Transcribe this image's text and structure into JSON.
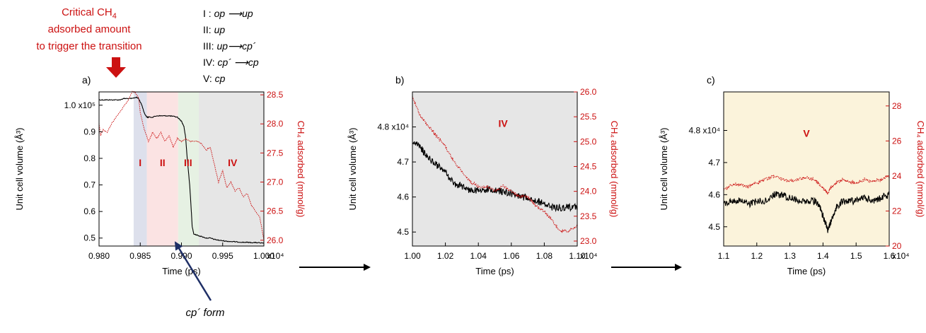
{
  "annotations": {
    "critical_line1": "Critical CH",
    "critical_sub": "4",
    "critical_line2": "adsorbed amount",
    "critical_line3": "to trigger the transition",
    "cp_form": "cp´ form",
    "legend": [
      {
        "label": "I : ",
        "text": "op ⟶up"
      },
      {
        "label": "II: ",
        "text": "up"
      },
      {
        "label": "III: ",
        "text": "up⟶cp´"
      },
      {
        "label": "IV: ",
        "text": "cp´ ⟶cp"
      },
      {
        "label": "V: ",
        "text": "cp"
      }
    ],
    "colors": {
      "volume": "#000000",
      "ch4": "#cc1111",
      "arrow_red": "#cc1111",
      "arrow_navy": "#1f2f66"
    }
  },
  "chart_data": [
    {
      "type": "line",
      "panel_label": "a)",
      "xlabel": "Time (ps)",
      "ylabel": "Unit cell volume (Å³)",
      "y2label": "CH₄ adsorbed (mmol/g)",
      "xlim": [
        0.98,
        1.0
      ],
      "x_multiplier": "x10⁴",
      "ylim": [
        0.47,
        1.05
      ],
      "y_multiplier": "x10⁵",
      "y2lim": [
        25.9,
        28.55
      ],
      "x_ticks": [
        "0.980",
        "0.985",
        "0.990",
        "0.995",
        "1.000"
      ],
      "y_ticks": [
        "1.0",
        "0.9",
        "0.8",
        "0.7",
        "0.6",
        "0.5"
      ],
      "y2_ticks": [
        "28.5",
        "28.0",
        "27.5",
        "27.0",
        "26.5",
        "26.0"
      ],
      "regions": [
        {
          "label": "I",
          "x0": 0.9842,
          "x1": 0.9858,
          "color": "#dde0ec"
        },
        {
          "label": "II",
          "x0": 0.9858,
          "x1": 0.9896,
          "color": "#fbe3e3"
        },
        {
          "label": "III",
          "x0": 0.9896,
          "x1": 0.9921,
          "color": "#e6f1e3"
        },
        {
          "label": "IV",
          "x0": 0.9921,
          "x1": 1.0,
          "color": "#e6e6e6"
        }
      ],
      "series": [
        {
          "axis": "left",
          "style": "solid",
          "x": [
            0.98,
            0.9805,
            0.981,
            0.9815,
            0.982,
            0.9825,
            0.983,
            0.9835,
            0.984,
            0.9845,
            0.9848,
            0.9852,
            0.9855,
            0.9858,
            0.986,
            0.9865,
            0.987,
            0.9875,
            0.988,
            0.9885,
            0.989,
            0.9895,
            0.99,
            0.9903,
            0.9905,
            0.9907,
            0.991,
            0.9912,
            0.9913,
            0.9915,
            0.992,
            0.9925,
            0.993,
            0.9935,
            0.994,
            0.9945,
            0.995,
            0.9955,
            0.996,
            0.9965,
            0.997,
            0.9975,
            0.998,
            0.9985,
            0.999,
            0.9995,
            1.0
          ],
          "values": [
            1.02,
            1.02,
            1.02,
            1.02,
            1.02,
            1.02,
            1.025,
            1.025,
            1.025,
            1.03,
            1.025,
            1.0,
            0.97,
            0.955,
            0.955,
            0.955,
            0.96,
            0.96,
            0.96,
            0.96,
            0.958,
            0.955,
            0.94,
            0.92,
            0.88,
            0.8,
            0.7,
            0.6,
            0.545,
            0.515,
            0.51,
            0.505,
            0.5,
            0.5,
            0.495,
            0.492,
            0.49,
            0.488,
            0.487,
            0.486,
            0.485,
            0.484,
            0.484,
            0.483,
            0.483,
            0.482,
            0.48
          ]
        },
        {
          "axis": "right",
          "style": "dotted",
          "x": [
            0.98,
            0.9802,
            0.9805,
            0.981,
            0.9815,
            0.982,
            0.9825,
            0.983,
            0.9835,
            0.984,
            0.9843,
            0.9848,
            0.985,
            0.9855,
            0.986,
            0.9865,
            0.987,
            0.9875,
            0.988,
            0.9885,
            0.989,
            0.9895,
            0.99,
            0.9905,
            0.991,
            0.9915,
            0.992,
            0.9925,
            0.993,
            0.9935,
            0.994,
            0.9945,
            0.995,
            0.9955,
            0.996,
            0.9965,
            0.997,
            0.9975,
            0.998,
            0.9985,
            0.999,
            0.9995,
            1.0
          ],
          "values": [
            28.0,
            27.8,
            27.9,
            27.85,
            28.0,
            28.1,
            28.2,
            28.3,
            28.4,
            28.55,
            28.55,
            28.45,
            28.2,
            27.9,
            27.7,
            27.85,
            27.75,
            27.85,
            27.7,
            27.8,
            27.6,
            27.75,
            27.7,
            27.75,
            27.7,
            27.7,
            27.7,
            27.65,
            27.55,
            27.6,
            27.3,
            27.0,
            27.2,
            26.9,
            27.0,
            26.85,
            26.9,
            26.75,
            26.8,
            26.6,
            26.5,
            26.4,
            26.0
          ]
        }
      ],
      "phase_labels": [
        {
          "text": "I",
          "x": 0.985,
          "y": 0.77
        },
        {
          "text": "II",
          "x": 0.9877,
          "y": 0.77
        },
        {
          "text": "III",
          "x": 0.9908,
          "y": 0.77
        },
        {
          "text": "IV",
          "x": 0.9962,
          "y": 0.77
        }
      ]
    },
    {
      "type": "line",
      "panel_label": "b)",
      "xlabel": "Time (ps)",
      "ylabel": "Unit cell volume (Å³)",
      "y2label": "CH₄ adsorbed (mmol/g)",
      "xlim": [
        1.0,
        1.1
      ],
      "x_multiplier": "x10⁴",
      "ylim": [
        4.46,
        4.9
      ],
      "y_multiplier": "x10⁴",
      "y2lim": [
        22.9,
        26.0
      ],
      "x_ticks": [
        "1.00",
        "1.02",
        "1.04",
        "1.06",
        "1.08",
        "1.10"
      ],
      "y_ticks": [
        "4.8",
        "4.7",
        "4.6",
        "4.5"
      ],
      "y2_ticks": [
        "26.0",
        "25.5",
        "25.0",
        "24.5",
        "24.0",
        "23.5",
        "23.0"
      ],
      "region_color": "#e6e6e6",
      "series": [
        {
          "axis": "left",
          "style": "solid",
          "x": [
            1.0,
            1.005,
            1.01,
            1.015,
            1.02,
            1.025,
            1.03,
            1.035,
            1.04,
            1.045,
            1.05,
            1.055,
            1.06,
            1.065,
            1.07,
            1.075,
            1.08,
            1.085,
            1.09,
            1.095,
            1.1
          ],
          "values": [
            4.76,
            4.74,
            4.71,
            4.69,
            4.67,
            4.64,
            4.63,
            4.62,
            4.62,
            4.62,
            4.62,
            4.615,
            4.61,
            4.6,
            4.6,
            4.59,
            4.58,
            4.57,
            4.57,
            4.57,
            4.57
          ]
        },
        {
          "axis": "right",
          "style": "dotted",
          "x": [
            1.0,
            1.005,
            1.01,
            1.015,
            1.02,
            1.025,
            1.03,
            1.035,
            1.04,
            1.045,
            1.05,
            1.055,
            1.06,
            1.065,
            1.07,
            1.075,
            1.08,
            1.085,
            1.09,
            1.095,
            1.1
          ],
          "values": [
            25.9,
            25.5,
            25.3,
            25.1,
            24.9,
            24.6,
            24.4,
            24.2,
            24.1,
            24.1,
            24.0,
            24.1,
            24.0,
            23.9,
            23.9,
            23.7,
            23.6,
            23.4,
            23.2,
            23.2,
            23.3
          ]
        }
      ],
      "phase_labels": [
        {
          "text": "IV",
          "x": 1.055,
          "y": 4.8
        }
      ]
    },
    {
      "type": "line",
      "panel_label": "c)",
      "xlabel": "Time (ps)",
      "ylabel": "Unit cell volume (Å³)",
      "y2label": "CH₄ adsorbed (mmol/g)",
      "xlim": [
        1.1,
        1.6
      ],
      "x_multiplier": "x10⁴",
      "ylim": [
        4.44,
        4.92
      ],
      "y_multiplier": "x10⁴",
      "y2lim": [
        20.0,
        28.8
      ],
      "x_ticks": [
        "1.1",
        "1.2",
        "1.3",
        "1.4",
        "1.5",
        "1.6"
      ],
      "y_ticks": [
        "4.8",
        "4.7",
        "4.6",
        "4.5"
      ],
      "y2_ticks": [
        "28",
        "26",
        "24",
        "22",
        "20"
      ],
      "region_color": "#fbf3db",
      "series": [
        {
          "axis": "left",
          "style": "solid",
          "x": [
            1.1,
            1.125,
            1.15,
            1.175,
            1.2,
            1.225,
            1.25,
            1.275,
            1.3,
            1.325,
            1.35,
            1.375,
            1.39,
            1.405,
            1.415,
            1.425,
            1.44,
            1.46,
            1.48,
            1.5,
            1.525,
            1.55,
            1.575,
            1.6
          ],
          "values": [
            4.57,
            4.58,
            4.58,
            4.57,
            4.58,
            4.58,
            4.6,
            4.6,
            4.59,
            4.58,
            4.58,
            4.58,
            4.56,
            4.52,
            4.49,
            4.52,
            4.56,
            4.58,
            4.58,
            4.58,
            4.59,
            4.58,
            4.59,
            4.6
          ]
        },
        {
          "axis": "right",
          "style": "dotted",
          "x": [
            1.1,
            1.125,
            1.15,
            1.175,
            1.2,
            1.225,
            1.25,
            1.275,
            1.3,
            1.325,
            1.35,
            1.375,
            1.39,
            1.405,
            1.415,
            1.425,
            1.44,
            1.46,
            1.48,
            1.5,
            1.525,
            1.55,
            1.575,
            1.6
          ],
          "values": [
            23.2,
            23.5,
            23.5,
            23.4,
            23.6,
            23.8,
            24.0,
            23.8,
            23.7,
            23.8,
            23.9,
            23.8,
            23.5,
            23.2,
            23.0,
            23.4,
            23.6,
            23.8,
            23.7,
            23.6,
            23.8,
            23.7,
            23.8,
            24.0
          ]
        }
      ],
      "phase_labels": [
        {
          "text": "V",
          "x": 1.35,
          "y": 4.78
        }
      ]
    }
  ]
}
